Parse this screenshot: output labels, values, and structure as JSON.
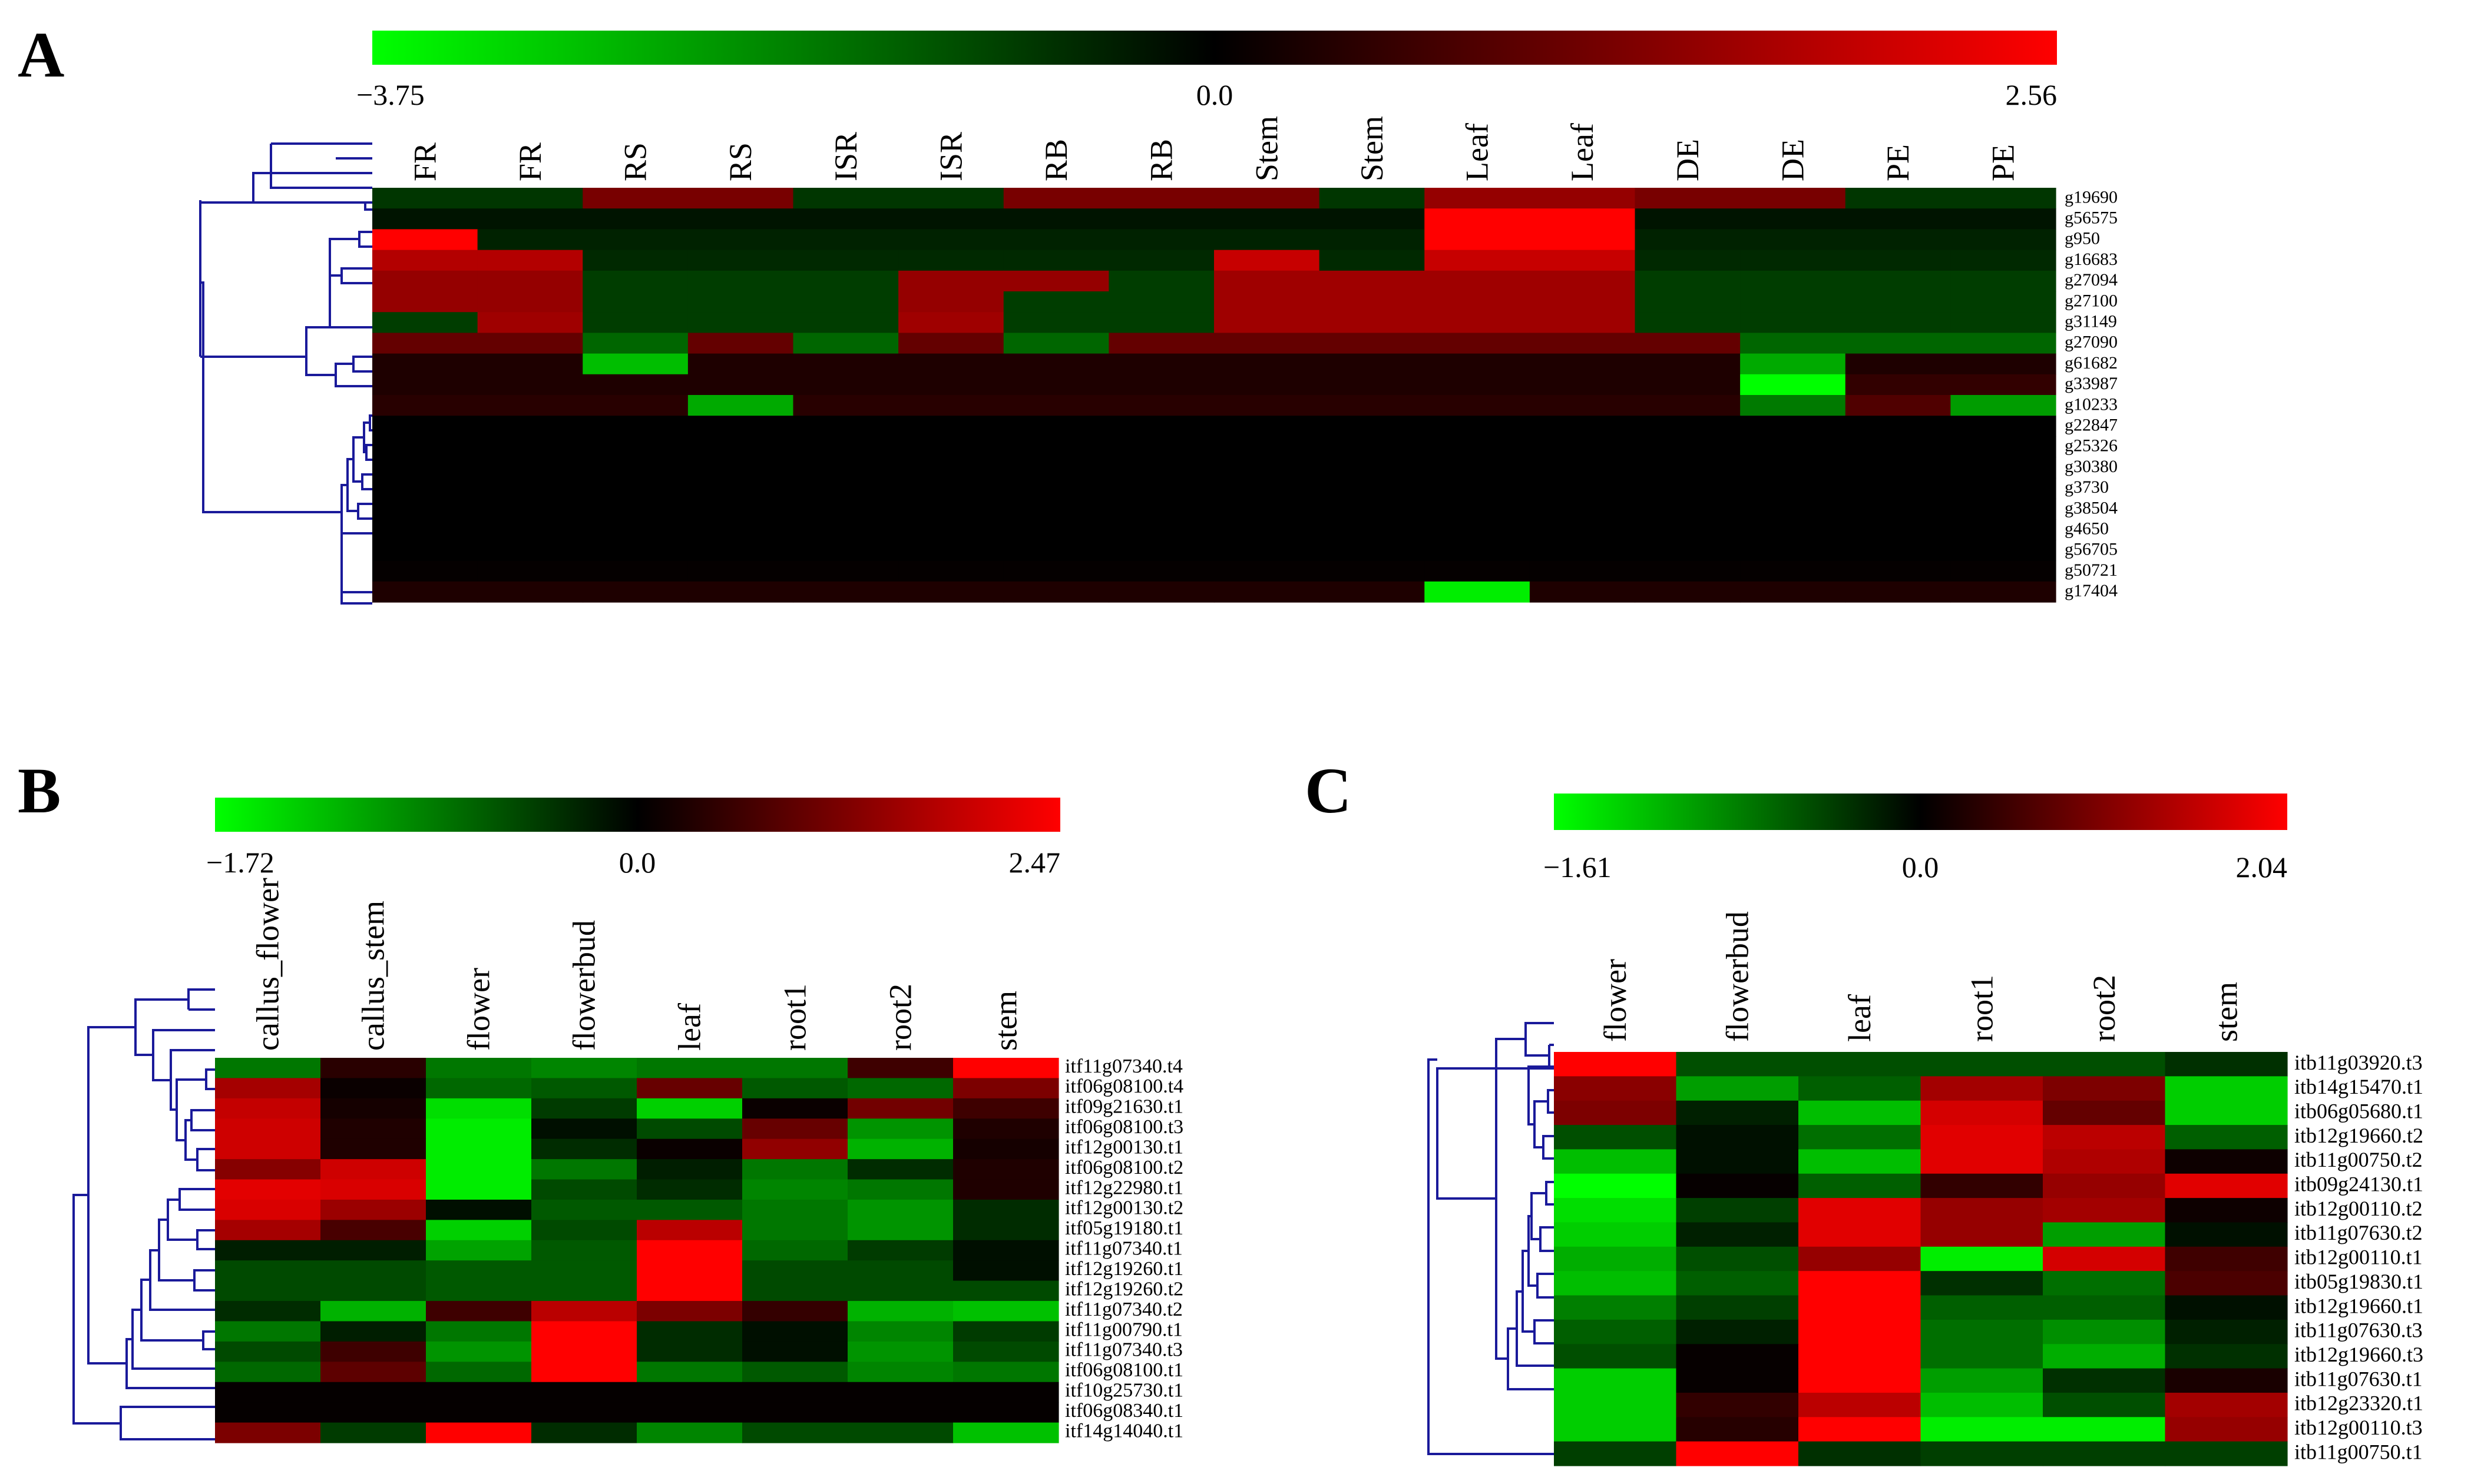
{
  "panels": [
    {
      "letter": "A",
      "scale_labels": {
        "min": "−3.75",
        "mid": "0.0",
        "max": "2.56"
      },
      "gradient": {
        "min_color": "#00ff00",
        "mid_color": "#000000",
        "max_color": "#ff0000"
      }
    },
    {
      "letter": "B",
      "scale_labels": {
        "min": "−1.72",
        "mid": "0.0",
        "max": "2.47"
      },
      "gradient": {
        "min_color": "#00ff00",
        "mid_color": "#000000",
        "max_color": "#ff0000"
      }
    },
    {
      "letter": "C",
      "scale_labels": {
        "min": "−1.61",
        "mid": "0.0",
        "max": "2.04"
      },
      "gradient": {
        "min_color": "#00ff00",
        "mid_color": "#000000",
        "max_color": "#ff0000"
      }
    }
  ],
  "chart_data": [
    {
      "type": "heatmap",
      "panel": "A",
      "color_range": [
        -3.75,
        2.56
      ],
      "columns": [
        "FR",
        "FR",
        "RS",
        "RS",
        "ISR",
        "ISR",
        "RB",
        "RB",
        "Stem",
        "Stem",
        "Leaf",
        "Leaf",
        "DE",
        "DE",
        "PE",
        "PE"
      ],
      "rows": [
        "g19690",
        "g56575",
        "g950",
        "g16683",
        "g27094",
        "g27100",
        "g31149",
        "g27090",
        "g61682",
        "g33987",
        "g10233",
        "g22847",
        "g25326",
        "g30380",
        "g3730",
        "g38504",
        "g4650",
        "g56705",
        "g50721",
        "g17404"
      ],
      "values": [
        [
          -0.8,
          -0.8,
          1.2,
          1.2,
          -0.8,
          -0.8,
          1.2,
          1.2,
          1.2,
          -0.8,
          1.5,
          1.5,
          1.2,
          1.2,
          -0.8,
          -0.8
        ],
        [
          -0.3,
          -0.3,
          -0.3,
          -0.3,
          -0.3,
          -0.3,
          -0.3,
          -0.3,
          -0.3,
          -0.3,
          2.56,
          2.56,
          -0.3,
          -0.3,
          -0.3,
          -0.3
        ],
        [
          2.56,
          -0.5,
          -0.5,
          -0.5,
          -0.5,
          -0.5,
          -0.5,
          -0.5,
          -0.5,
          -0.5,
          2.56,
          2.56,
          -0.5,
          -0.5,
          -0.5,
          -0.5
        ],
        [
          1.8,
          1.8,
          -0.6,
          -0.6,
          -0.6,
          -0.6,
          -0.6,
          -0.6,
          2.0,
          -0.6,
          2.0,
          2.0,
          -0.6,
          -0.6,
          -0.6,
          -0.6
        ],
        [
          1.5,
          1.5,
          -0.9,
          -0.9,
          -0.9,
          1.5,
          1.5,
          -0.9,
          1.6,
          1.6,
          1.6,
          1.6,
          -0.9,
          -0.9,
          -0.9,
          -0.9
        ],
        [
          1.5,
          1.5,
          -0.9,
          -0.9,
          -0.9,
          1.5,
          -0.9,
          -0.9,
          1.6,
          1.6,
          1.6,
          1.6,
          -0.9,
          -0.9,
          -0.9,
          -0.9
        ],
        [
          -0.9,
          1.6,
          -0.9,
          -0.9,
          -0.9,
          1.6,
          -0.9,
          -0.9,
          1.6,
          1.6,
          1.6,
          1.6,
          -0.9,
          -0.9,
          -0.9,
          -0.9
        ],
        [
          1.0,
          1.0,
          -1.5,
          1.0,
          -1.5,
          1.0,
          -1.5,
          1.0,
          1.0,
          1.0,
          1.0,
          1.0,
          1.0,
          -1.5,
          -1.5,
          -1.5
        ],
        [
          0.3,
          0.3,
          -2.8,
          0.3,
          0.3,
          0.3,
          0.3,
          0.3,
          0.3,
          0.3,
          0.3,
          0.3,
          0.3,
          -2.5,
          0.3,
          0.3
        ],
        [
          0.3,
          0.3,
          0.3,
          0.3,
          0.3,
          0.3,
          0.3,
          0.3,
          0.3,
          0.3,
          0.3,
          0.3,
          0.3,
          -3.75,
          0.5,
          0.5
        ],
        [
          0.4,
          0.4,
          0.4,
          -2.5,
          0.4,
          0.4,
          0.4,
          0.4,
          0.4,
          0.4,
          0.4,
          0.4,
          0.4,
          -1.8,
          0.8,
          -2.3
        ],
        [
          0,
          0,
          0,
          0,
          0,
          0,
          0,
          0,
          0,
          0,
          0,
          0,
          0,
          0,
          0,
          0
        ],
        [
          0,
          0,
          0,
          0,
          0,
          0,
          0,
          0,
          0,
          0,
          0,
          0,
          0,
          0,
          0,
          0
        ],
        [
          0,
          0,
          0,
          0,
          0,
          0,
          0,
          0,
          0,
          0,
          0,
          0,
          0,
          0,
          0,
          0
        ],
        [
          0,
          0,
          0,
          0,
          0,
          0,
          0,
          0,
          0,
          0,
          0,
          0,
          0,
          0,
          0,
          0
        ],
        [
          0,
          0,
          0,
          0,
          0,
          0,
          0,
          0,
          0,
          0,
          0,
          0,
          0,
          0,
          0,
          0
        ],
        [
          0,
          0,
          0,
          0,
          0,
          0,
          0,
          0,
          0,
          0,
          0,
          0,
          0,
          0,
          0,
          0
        ],
        [
          0,
          0,
          0,
          0,
          0,
          0,
          0,
          0,
          0,
          0,
          0,
          0,
          0,
          0,
          0,
          0
        ],
        [
          0.05,
          0.05,
          0.05,
          0.05,
          0.05,
          0.05,
          0.05,
          0.05,
          0.05,
          0.05,
          0.05,
          0.05,
          0.05,
          0.05,
          0.05,
          0.05
        ],
        [
          0.3,
          0.3,
          0.3,
          0.3,
          0.3,
          0.3,
          0.3,
          0.3,
          0.3,
          0.3,
          -3.5,
          0.3,
          0.3,
          0.3,
          0.3,
          0.3
        ]
      ]
    },
    {
      "type": "heatmap",
      "panel": "B",
      "color_range": [
        -1.72,
        2.47
      ],
      "columns": [
        "callus_flower",
        "callus_stem",
        "flower",
        "flowerbud",
        "leaf",
        "root1",
        "root2",
        "stem"
      ],
      "rows": [
        "itf11g07340.t4",
        "itf06g08100.t4",
        "itf09g21630.t1",
        "itf06g08100.t3",
        "itf12g00130.t1",
        "itf06g08100.t2",
        "itf12g22980.t1",
        "itf12g00130.t2",
        "itf05g19180.t1",
        "itf11g07340.t1",
        "itf12g19260.t1",
        "itf12g19260.t2",
        "itf11g07340.t2",
        "itf11g00790.t1",
        "itf11g07340.t3",
        "itf06g08100.t1",
        "itf10g25730.t1",
        "itf06g08340.t1",
        "itf14g14040.t1"
      ],
      "values": [
        [
          -0.8,
          0.4,
          -0.8,
          -0.9,
          -0.8,
          -0.8,
          0.6,
          2.47
        ],
        [
          1.6,
          0.1,
          -0.7,
          -0.6,
          1.0,
          -0.6,
          -0.7,
          1.2
        ],
        [
          1.9,
          0.2,
          -1.5,
          -0.4,
          -1.4,
          0.1,
          1.1,
          0.6
        ],
        [
          2.0,
          0.3,
          -1.6,
          -0.1,
          -0.5,
          1.0,
          -1.0,
          0.3
        ],
        [
          2.0,
          0.3,
          -1.6,
          -0.3,
          0.1,
          1.4,
          -1.2,
          0.2
        ],
        [
          1.3,
          2.0,
          -1.6,
          -0.8,
          -0.2,
          -0.8,
          -0.3,
          0.3
        ],
        [
          2.2,
          2.1,
          -1.6,
          -0.5,
          -0.3,
          -0.9,
          -0.8,
          0.3
        ],
        [
          2.1,
          1.5,
          -0.1,
          -0.6,
          -0.6,
          -0.8,
          -1.0,
          -0.3
        ],
        [
          1.6,
          0.7,
          -1.4,
          -0.5,
          1.8,
          -0.8,
          -1.0,
          -0.3
        ],
        [
          -0.2,
          -0.2,
          -1.1,
          -0.6,
          2.47,
          -0.7,
          -0.4,
          -0.1
        ],
        [
          -0.5,
          -0.5,
          -0.6,
          -0.6,
          2.47,
          -0.5,
          -0.5,
          -0.1
        ],
        [
          -0.5,
          -0.5,
          -0.6,
          -0.6,
          2.47,
          -0.5,
          -0.5,
          -0.5
        ],
        [
          -0.3,
          -1.2,
          0.6,
          1.8,
          1.2,
          0.5,
          -1.2,
          -1.3
        ],
        [
          -0.8,
          -0.2,
          -0.8,
          2.47,
          -0.3,
          -0.1,
          -0.9,
          -0.4
        ],
        [
          -0.5,
          0.6,
          -1.0,
          2.47,
          -0.3,
          -0.1,
          -1.0,
          -0.5
        ],
        [
          -0.7,
          0.9,
          -0.7,
          2.47,
          -0.8,
          -0.6,
          -0.9,
          -0.8
        ],
        [
          0.05,
          0.05,
          0.05,
          0.05,
          0.05,
          0.05,
          0.05,
          0.05
        ],
        [
          0.05,
          0.05,
          0.05,
          0.05,
          0.05,
          0.05,
          0.05,
          0.05
        ],
        [
          1.2,
          -0.4,
          2.47,
          -0.3,
          -0.9,
          -0.5,
          -0.5,
          -1.3
        ]
      ]
    },
    {
      "type": "heatmap",
      "panel": "C",
      "color_range": [
        -1.61,
        2.04
      ],
      "columns": [
        "flower",
        "flowerbud",
        "leaf",
        "root1",
        "root2",
        "stem"
      ],
      "rows": [
        "itb11g03920.t3",
        "itb14g15470.t1",
        "itb06g05680.t1",
        "itb12g19660.t2",
        "itb11g00750.t2",
        "itb09g24130.t1",
        "itb12g00110.t2",
        "itb11g07630.t2",
        "itb12g00110.t1",
        "itb05g19830.t1",
        "itb12g19660.t1",
        "itb11g07630.t3",
        "itb12g19660.t3",
        "itb11g07630.t1",
        "itb12g23320.t1",
        "itb12g00110.t3",
        "itb11g00750.t1"
      ],
      "values": [
        [
          2.04,
          -0.5,
          -0.5,
          -0.5,
          -0.5,
          -0.3
        ],
        [
          1.1,
          -1.0,
          -0.6,
          1.3,
          1.0,
          -1.3
        ],
        [
          1.0,
          -0.2,
          -1.2,
          1.7,
          0.8,
          -1.3
        ],
        [
          -0.5,
          -0.1,
          -0.7,
          1.8,
          1.5,
          -0.6
        ],
        [
          -1.2,
          -0.1,
          -1.2,
          1.8,
          1.4,
          0.1
        ],
        [
          -1.61,
          0.05,
          -0.6,
          0.4,
          1.2,
          1.8
        ],
        [
          -1.4,
          -0.4,
          1.8,
          1.2,
          1.3,
          0.1
        ],
        [
          -1.3,
          -0.2,
          1.8,
          1.2,
          -1.0,
          -0.1
        ],
        [
          -1.1,
          -0.5,
          1.2,
          -1.5,
          1.7,
          0.5
        ],
        [
          -1.2,
          -0.6,
          2.04,
          -0.3,
          -0.7,
          0.6
        ],
        [
          -0.8,
          -0.4,
          2.04,
          -0.6,
          -0.6,
          -0.1
        ],
        [
          -0.6,
          -0.2,
          2.04,
          -0.7,
          -0.9,
          -0.2
        ],
        [
          -0.5,
          0.05,
          2.04,
          -0.7,
          -1.1,
          -0.3
        ],
        [
          -1.3,
          0.05,
          2.04,
          -1.0,
          -0.3,
          0.2
        ],
        [
          -1.3,
          0.4,
          1.5,
          -1.2,
          -0.5,
          1.3
        ],
        [
          -1.3,
          0.3,
          2.04,
          -1.5,
          -1.5,
          1.2
        ],
        [
          -0.4,
          2.04,
          -0.3,
          -0.4,
          -0.4,
          -0.4
        ]
      ]
    }
  ]
}
